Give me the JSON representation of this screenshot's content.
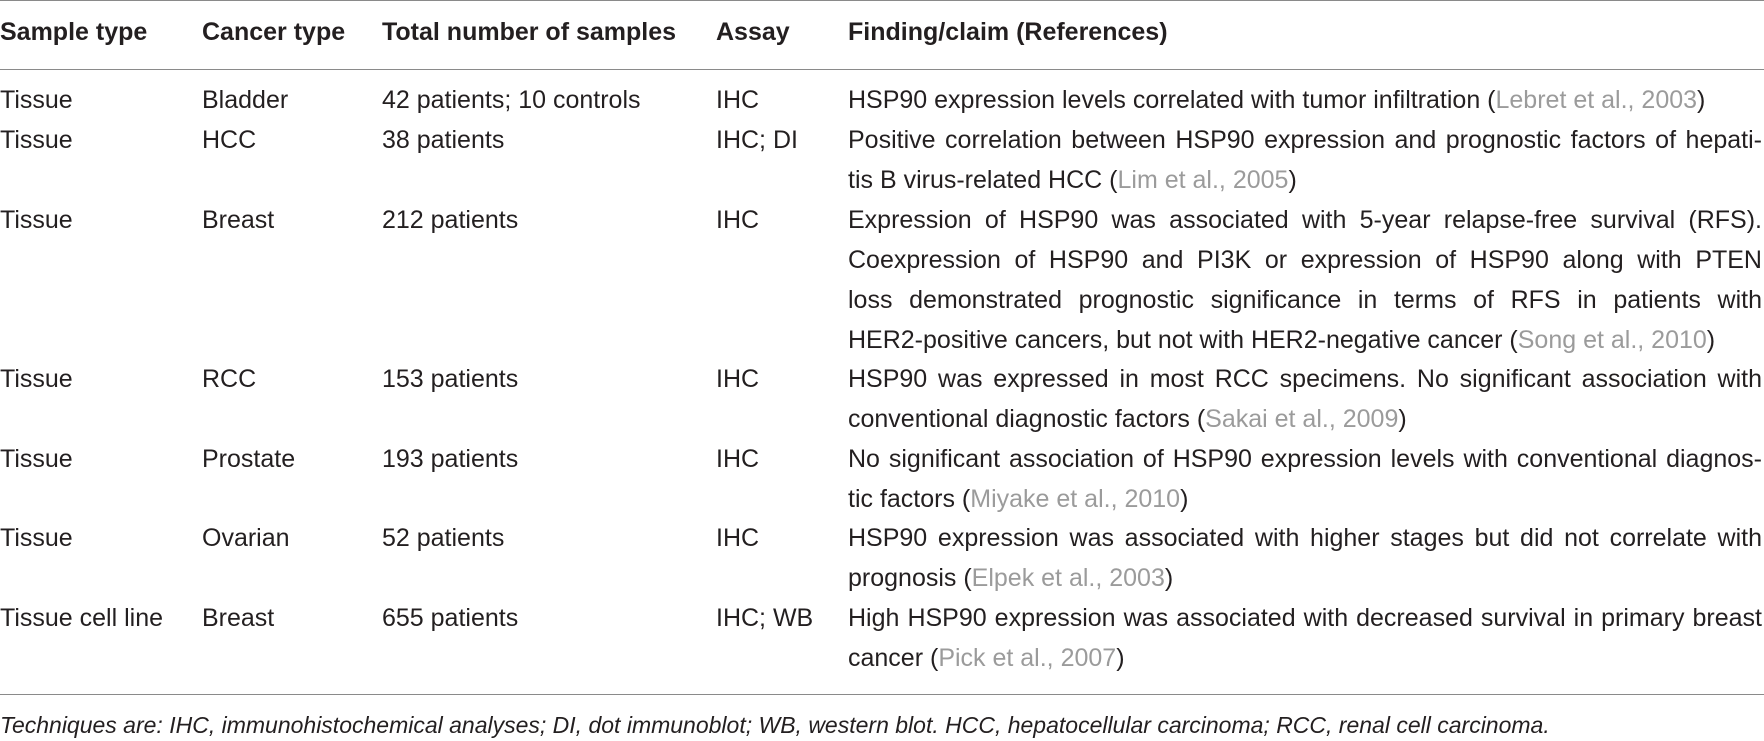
{
  "table": {
    "headers": {
      "sample_type": "Sample type",
      "cancer_type": "Cancer type",
      "total_samples": "Total number of samples",
      "assay": "Assay",
      "finding": "Finding/claim (References)"
    },
    "rows": [
      {
        "sample_type": "Tissue",
        "cancer_type": "Bladder",
        "total_samples": "42 patients; 10 controls",
        "assay": "IHC",
        "finding_l1": "HSP90 expression levels correlated with tumor infiltration (",
        "ref": "Lebret et al., 2003",
        "close": ")"
      },
      {
        "sample_type": "Tissue",
        "cancer_type": "HCC",
        "total_samples": "38 patients",
        "assay": "IHC; DI",
        "finding_l1": "Positive correlation between HSP90 expression and prognostic factors of hepati-",
        "finding_l2": "tis B virus-related HCC (",
        "ref": "Lim et al., 2005",
        "close": ")"
      },
      {
        "sample_type": "Tissue",
        "cancer_type": "Breast",
        "total_samples": "212 patients",
        "assay": "IHC",
        "finding_l1": "Expression of HSP90 was associated with 5-year relapse-free survival (RFS).",
        "finding_l2": "Coexpression of HSP90 and PI3K or expression of HSP90 along with PTEN",
        "finding_l3": "loss demonstrated prognostic significance in terms of RFS in patients with",
        "finding_l4": "HER2-positive cancers, but not with HER2-negative cancer (",
        "ref": "Song et al., 2010",
        "close": ")"
      },
      {
        "sample_type": "Tissue",
        "cancer_type": "RCC",
        "total_samples": "153 patients",
        "assay": "IHC",
        "finding_l1": "HSP90 was expressed in most RCC specimens. No significant association with",
        "finding_l2": "conventional diagnostic factors (",
        "ref": "Sakai et al., 2009",
        "close": ")"
      },
      {
        "sample_type": "Tissue",
        "cancer_type": "Prostate",
        "total_samples": "193 patients",
        "assay": "IHC",
        "finding_l1": "No significant association of HSP90 expression levels with conventional diagnos-",
        "finding_l2": "tic factors (",
        "ref": "Miyake et al., 2010",
        "close": ")"
      },
      {
        "sample_type": "Tissue",
        "cancer_type": "Ovarian",
        "total_samples": "52 patients",
        "assay": "IHC",
        "finding_l1": "HSP90 expression was associated with higher stages but did not correlate with",
        "finding_l2": "prognosis (",
        "ref": "Elpek et al., 2003",
        "close": ")"
      },
      {
        "sample_type": "Tissue cell line",
        "cancer_type": "Breast",
        "total_samples": "655 patients",
        "assay": "IHC; WB",
        "finding_l1": "High HSP90 expression was associated with decreased survival in primary breast",
        "finding_l2": "cancer (",
        "ref": "Pick et al., 2007",
        "close": ")"
      }
    ]
  },
  "footnote": "Techniques are: IHC, immunohistochemical analyses; DI, dot immunoblot; WB, western blot. HCC, hepatocellular carcinoma; RCC, renal cell carcinoma."
}
